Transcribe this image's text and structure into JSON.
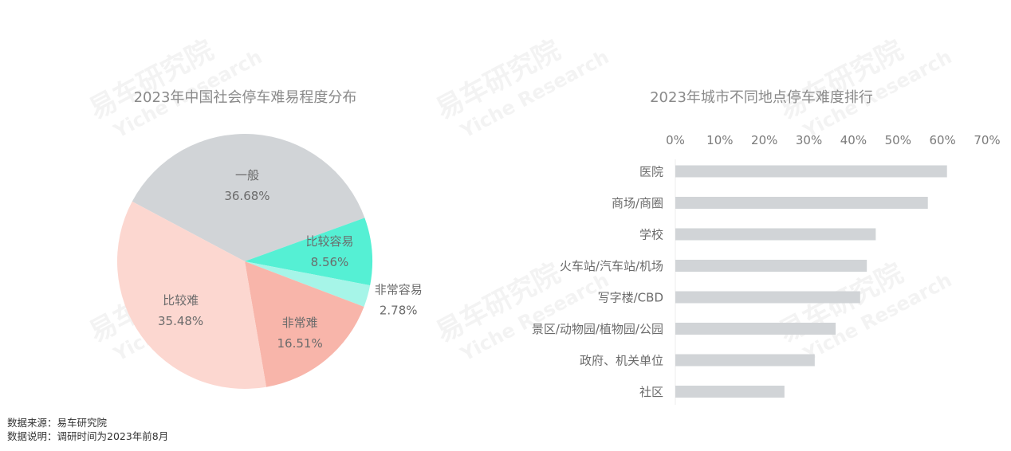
{
  "watermark": {
    "line1": "易车研究院",
    "line2": "Yiche Research"
  },
  "chart_data": [
    {
      "type": "pie",
      "title": "2023年中国社会停车难易程度分布",
      "slices": [
        {
          "label": "一般",
          "value": 36.68,
          "value_label": "36.68%",
          "color": "#d1d4d7"
        },
        {
          "label": "比较容易",
          "value": 8.56,
          "value_label": "8.56%",
          "color": "#55f0d4"
        },
        {
          "label": "非常容易",
          "value": 2.78,
          "value_label": "2.78%",
          "color": "#a6f5e8"
        },
        {
          "label": "非常难",
          "value": 16.51,
          "value_label": "16.51%",
          "color": "#f8b5aa"
        },
        {
          "label": "比较难",
          "value": 35.48,
          "value_label": "35.48%",
          "color": "#fcd7d0"
        }
      ]
    },
    {
      "type": "bar",
      "orientation": "horizontal",
      "title": "2023年城市不同地点停车难度排行",
      "categories": [
        "医院",
        "商场/商圈",
        "学校",
        "火车站/汽车站/机场",
        "写字楼/CBD",
        "景区/动物园/植物园/公园",
        "政府、机关单位",
        "社区"
      ],
      "values": [
        61,
        56.7,
        45,
        43,
        41.5,
        36,
        31.3,
        24.5
      ],
      "xlim": [
        0,
        70
      ],
      "xticks": [
        "0%",
        "10%",
        "20%",
        "30%",
        "40%",
        "50%",
        "60%",
        "70%"
      ],
      "axis_position": "top",
      "bar_color": "#d1d4d7"
    }
  ],
  "footnotes": {
    "source": "数据来源：易车研究院",
    "note": "数据说明：调研时间为2023年前8月"
  }
}
